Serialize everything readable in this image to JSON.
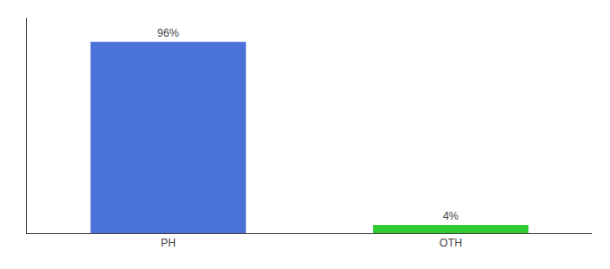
{
  "chart_data": {
    "type": "bar",
    "categories": [
      "PH",
      "OTH"
    ],
    "values": [
      96,
      4
    ],
    "value_labels": [
      "96%",
      "4%"
    ],
    "colors": [
      "#4a72d9",
      "#2ecc2e"
    ],
    "ylim": [
      0,
      108
    ],
    "data_labels": true,
    "tick_labels": "x",
    "grid": false
  }
}
